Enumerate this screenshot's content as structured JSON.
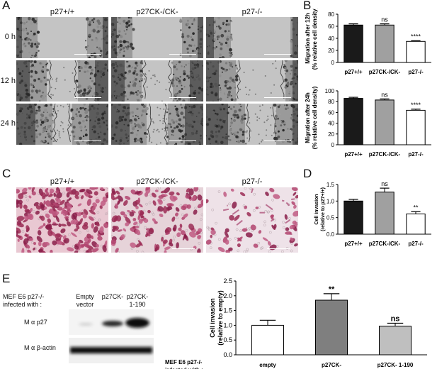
{
  "panels": {
    "A": "A",
    "B": "B",
    "C": "C",
    "D": "D",
    "E": "E"
  },
  "panelA": {
    "columns": [
      "p27+/+",
      "p27CK-/CK-",
      "p27-/-"
    ],
    "rows": [
      "0 h",
      "12 h",
      "24 h"
    ]
  },
  "panelC": {
    "columns": [
      "p27+/+",
      "p27CK-/CK-",
      "p27-/-"
    ]
  },
  "panelE_blot": {
    "label_line1": "MEF E6 p27-/-",
    "label_line2": "infected with :",
    "lanes": [
      [
        "Empty",
        "vector"
      ],
      [
        "p27CK-",
        ""
      ],
      [
        "p27CK-",
        "1-190"
      ]
    ],
    "rows": [
      "M α p27",
      "M α β-actin"
    ]
  },
  "chart_data": [
    {
      "type": "bar",
      "ylabel": "Migration after 12h (% relative cell density)",
      "ylabel_lines": [
        "Migration after 12h",
        "(% relative cell density)"
      ],
      "categories": [
        "p27+/+",
        "p27CK-/CK-",
        "p27-/-"
      ],
      "values": [
        62,
        62,
        35
      ],
      "errors": [
        2,
        2,
        1
      ],
      "significance": [
        "",
        "ns",
        "****"
      ],
      "bar_fills": [
        "#1a1a1a",
        "#a0a0a0",
        "#ffffff"
      ],
      "ylim": [
        0,
        80
      ],
      "yticks": [
        0,
        20,
        40,
        60,
        80
      ]
    },
    {
      "type": "bar",
      "ylabel": "Migration after 24h (% relative cell density)",
      "ylabel_lines": [
        "Migration after  24h",
        "(% relative cell density)"
      ],
      "categories": [
        "p27+/+",
        "p27CK-/CK-",
        "p27-/-"
      ],
      "values": [
        86,
        83,
        64
      ],
      "errors": [
        2,
        2,
        2
      ],
      "significance": [
        "",
        "ns",
        "****"
      ],
      "bar_fills": [
        "#1a1a1a",
        "#a0a0a0",
        "#ffffff"
      ],
      "ylim": [
        0,
        100
      ],
      "yticks": [
        0,
        20,
        40,
        60,
        80,
        100
      ]
    },
    {
      "type": "bar",
      "ylabel": "Cell invasion (relative to p27+/+)",
      "ylabel_lines": [
        "Cell invasion",
        "(relative to p27+/+)"
      ],
      "categories": [
        "p27+/+",
        "p27CK-/CK-",
        "p27-/-"
      ],
      "values": [
        1.0,
        1.27,
        0.61
      ],
      "errors": [
        0.05,
        0.12,
        0.07
      ],
      "significance": [
        "",
        "ns",
        "**"
      ],
      "bar_fills": [
        "#1a1a1a",
        "#a0a0a0",
        "#ffffff"
      ],
      "ylim": [
        0,
        1.5
      ],
      "yticks": [
        "0.0",
        "0.5",
        "1.0",
        "1.5"
      ]
    },
    {
      "type": "bar",
      "ylabel": "Cell invasion (relative to empty)",
      "ylabel_lines": [
        "Cell invasion",
        "(relative to empty)"
      ],
      "xprefix_lines": [
        "MEF E6 p27-/-",
        "infected with :"
      ],
      "categories": [
        "empty",
        "p27CK-",
        "p27CK- 1-190"
      ],
      "values": [
        1.0,
        1.85,
        0.97
      ],
      "errors": [
        0.17,
        0.22,
        0.1
      ],
      "significance": [
        "",
        "**",
        "ns"
      ],
      "bar_fills": [
        "#ffffff",
        "#7f7f7f",
        "#bfbfbf"
      ],
      "ylim": [
        0,
        2.5
      ],
      "yticks": [
        "0.0",
        "0.5",
        "1.0",
        "1.5",
        "2.0",
        "2.5"
      ]
    }
  ]
}
